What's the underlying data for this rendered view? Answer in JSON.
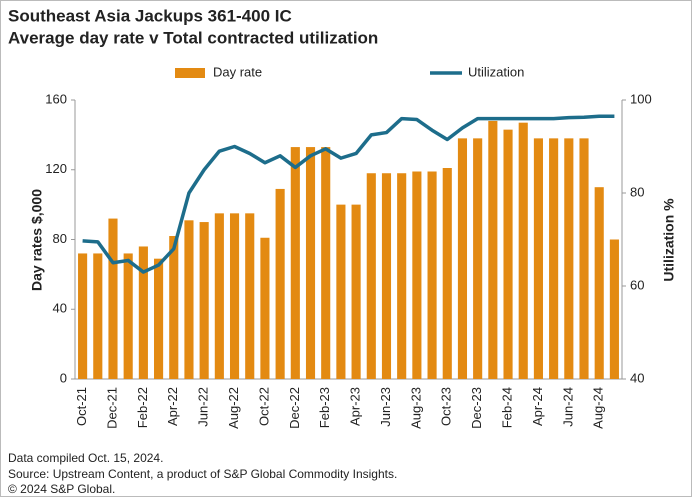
{
  "chart_data": {
    "type": "bar",
    "title": "Southeast Asia Jackups 361-400 IC",
    "subtitle": "Average day rate v Total contracted utilization",
    "categories": [
      "Oct-21",
      null,
      "Dec-21",
      null,
      "Feb-22",
      null,
      "Apr-22",
      null,
      "Jun-22",
      null,
      "Aug-22",
      null,
      "Oct-22",
      null,
      "Dec-22",
      null,
      "Feb-23",
      null,
      "Apr-23",
      null,
      "Jun-23",
      null,
      "Aug-23",
      null,
      "Oct-23",
      null,
      "Dec-23",
      null,
      "Feb-24",
      null,
      "Apr-24",
      null,
      "Jun-24",
      null,
      "Aug-24",
      null
    ],
    "series": [
      {
        "name": "Day rate",
        "type": "bar",
        "color": "#e38a12",
        "values": [
          72,
          72,
          92,
          72,
          76,
          69,
          82,
          91,
          90,
          95,
          95,
          95,
          81,
          109,
          133,
          133,
          133,
          100,
          100,
          118,
          118,
          118,
          119,
          119,
          121,
          138,
          138,
          148,
          143,
          147,
          138,
          138,
          138,
          138,
          110,
          80
        ]
      },
      {
        "name": "Utilization",
        "type": "line",
        "axis": "y2",
        "color": "#1d6d8b",
        "values": [
          69.7,
          69.5,
          65,
          65.5,
          63,
          64.5,
          68,
          80,
          85,
          89,
          90,
          88.5,
          86.5,
          88,
          85.5,
          88,
          89.5,
          87.5,
          88.5,
          92.5,
          93,
          96,
          95.8,
          93.5,
          91.5,
          94,
          96,
          96,
          96,
          96,
          96,
          96,
          96.2,
          96.3,
          96.5,
          96.5
        ]
      }
    ],
    "y_label": "Day rates $,000",
    "y2_label": "Utilization %",
    "ylim": [
      0,
      160
    ],
    "yticks": [
      0,
      40,
      80,
      120,
      160
    ],
    "y2lim": [
      40,
      100
    ],
    "y2ticks": [
      40,
      60,
      80,
      100
    ],
    "legend": "top",
    "notes": [
      "Data compiled Oct. 15, 2024.",
      "Source: Upstream Content, a product of S&P Global Commodity Insights.",
      "© 2024 S&P Global."
    ]
  }
}
